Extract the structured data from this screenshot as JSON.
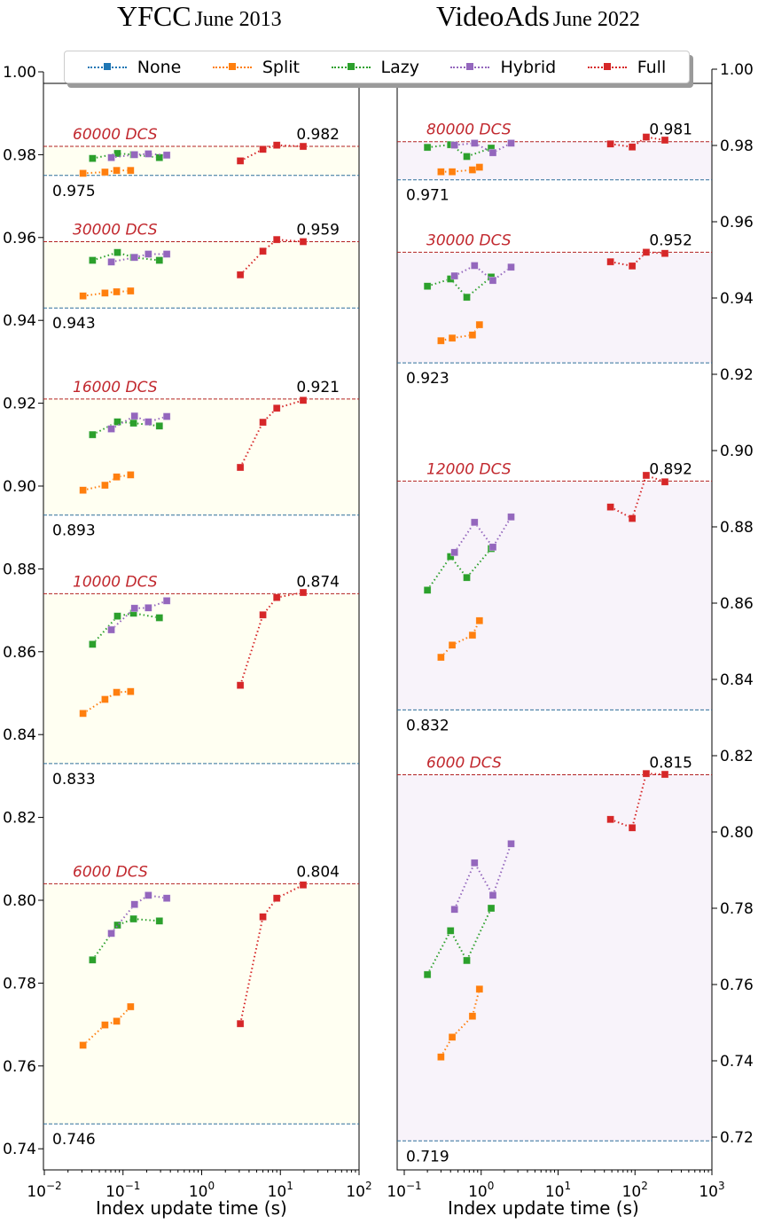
{
  "titles": {
    "left": {
      "main": "YFCC",
      "sub": "June 2013"
    },
    "right": {
      "main": "VideoAds",
      "sub": "June 2022"
    }
  },
  "legend": [
    {
      "label": "None",
      "color": "#1f77b4"
    },
    {
      "label": "Split",
      "color": "#ff7f0e"
    },
    {
      "label": "Lazy",
      "color": "#2ca02c"
    },
    {
      "label": "Hybrid",
      "color": "#9467bd"
    },
    {
      "label": "Full",
      "color": "#d62728"
    }
  ],
  "colors": {
    "none": "#1f77b4",
    "split": "#ff7f0e",
    "lazy": "#2ca02c",
    "hybrid": "#9467bd",
    "full": "#d62728",
    "yfcc_band": "#fffff2",
    "videoads_band": "#f8f3fa"
  },
  "chart_data": [
    {
      "type": "line",
      "title": "YFCC June 2013",
      "xlabel": "Index update time (s)",
      "ylabel": "",
      "xscale": "log",
      "xlim": [
        0.008,
        100
      ],
      "ylim": [
        0.735,
        1.003
      ],
      "xticks": [
        "10^-2",
        "10^-1",
        "10^0",
        "10^1",
        "10^2"
      ],
      "yticks": [
        "0.74",
        "0.76",
        "0.78",
        "0.80",
        "0.82",
        "0.84",
        "0.86",
        "0.88",
        "0.90",
        "0.92",
        "0.94",
        "0.96",
        "0.98",
        "1.00"
      ],
      "yaxis_side": "left",
      "groups": [
        {
          "label": "60000 DCS",
          "none": 0.975,
          "full_max": 0.982,
          "none_label": "0.975",
          "full_label": "0.982",
          "split": [
            [
              0.031,
              0.9755
            ],
            [
              0.059,
              0.9758
            ],
            [
              0.083,
              0.9762
            ],
            [
              0.125,
              0.9762
            ]
          ],
          "lazy": [
            [
              0.041,
              0.9791
            ],
            [
              0.085,
              0.9803
            ],
            [
              0.136,
              0.98
            ],
            [
              0.29,
              0.9793
            ]
          ],
          "hybrid": [
            [
              0.071,
              0.9793
            ],
            [
              0.14,
              0.98
            ],
            [
              0.21,
              0.9802
            ],
            [
              0.36,
              0.9799
            ]
          ],
          "full": [
            [
              3.1,
              0.9785
            ],
            [
              6.0,
              0.9813
            ],
            [
              9.0,
              0.9823
            ],
            [
              19.5,
              0.982
            ]
          ]
        },
        {
          "label": "30000 DCS",
          "none": 0.943,
          "full_max": 0.959,
          "none_label": "0.943",
          "full_label": "0.959",
          "split": [
            [
              0.031,
              0.9459
            ],
            [
              0.059,
              0.9466
            ],
            [
              0.083,
              0.9469
            ],
            [
              0.125,
              0.9471
            ]
          ],
          "lazy": [
            [
              0.041,
              0.9545
            ],
            [
              0.085,
              0.9564
            ],
            [
              0.136,
              0.9552
            ],
            [
              0.29,
              0.9545
            ]
          ],
          "hybrid": [
            [
              0.071,
              0.9541
            ],
            [
              0.14,
              0.9552
            ],
            [
              0.21,
              0.956
            ],
            [
              0.36,
              0.956
            ]
          ],
          "full": [
            [
              3.1,
              0.951
            ],
            [
              6.0,
              0.9567
            ],
            [
              9.0,
              0.9595
            ],
            [
              19.5,
              0.959
            ]
          ]
        },
        {
          "label": "16000 DCS",
          "none": 0.893,
          "full_max": 0.921,
          "none_label": "0.893",
          "full_label": "0.921",
          "split": [
            [
              0.031,
              0.899
            ],
            [
              0.059,
              0.9002
            ],
            [
              0.083,
              0.9022
            ],
            [
              0.125,
              0.9027
            ]
          ],
          "lazy": [
            [
              0.041,
              0.9124
            ],
            [
              0.085,
              0.9155
            ],
            [
              0.136,
              0.9152
            ],
            [
              0.29,
              0.9145
            ]
          ],
          "hybrid": [
            [
              0.071,
              0.9138
            ],
            [
              0.14,
              0.9169
            ],
            [
              0.21,
              0.9155
            ],
            [
              0.36,
              0.9168
            ]
          ],
          "full": [
            [
              3.1,
              0.9045
            ],
            [
              6.0,
              0.9154
            ],
            [
              9.0,
              0.9188
            ],
            [
              19.5,
              0.9207
            ]
          ]
        },
        {
          "label": "10000 DCS",
          "none": 0.833,
          "full_max": 0.874,
          "none_label": "0.833",
          "full_label": "0.874",
          "split": [
            [
              0.031,
              0.8451
            ],
            [
              0.059,
              0.8485
            ],
            [
              0.083,
              0.8502
            ],
            [
              0.125,
              0.8504
            ]
          ],
          "lazy": [
            [
              0.041,
              0.8618
            ],
            [
              0.085,
              0.8686
            ],
            [
              0.136,
              0.8693
            ],
            [
              0.29,
              0.8682
            ]
          ],
          "hybrid": [
            [
              0.071,
              0.8653
            ],
            [
              0.14,
              0.8705
            ],
            [
              0.21,
              0.8706
            ],
            [
              0.36,
              0.8723
            ]
          ],
          "full": [
            [
              3.1,
              0.8519
            ],
            [
              6.0,
              0.8689
            ],
            [
              9.0,
              0.8731
            ],
            [
              19.5,
              0.8743
            ]
          ]
        },
        {
          "label": "6000 DCS",
          "none": 0.746,
          "full_max": 0.804,
          "none_label": "0.746",
          "full_label": "0.804",
          "split": [
            [
              0.031,
              0.765
            ],
            [
              0.059,
              0.7699
            ],
            [
              0.083,
              0.7708
            ],
            [
              0.125,
              0.7743
            ]
          ],
          "lazy": [
            [
              0.041,
              0.7856
            ],
            [
              0.085,
              0.794
            ],
            [
              0.136,
              0.7955
            ],
            [
              0.29,
              0.795
            ]
          ],
          "hybrid": [
            [
              0.071,
              0.792
            ],
            [
              0.14,
              0.799
            ],
            [
              0.21,
              0.8012
            ],
            [
              0.36,
              0.8005
            ]
          ],
          "full": [
            [
              3.1,
              0.7702
            ],
            [
              6.0,
              0.796
            ],
            [
              9.0,
              0.8005
            ],
            [
              19.5,
              0.8037
            ]
          ]
        }
      ]
    },
    {
      "type": "line",
      "title": "VideoAds June 2022",
      "xlabel": "Index update time (s)",
      "ylabel": "",
      "xscale": "log",
      "xlim": [
        0.085,
        1000
      ],
      "ylim": [
        0.712,
        1.003
      ],
      "xticks": [
        "10^-1",
        "10^0",
        "10^1",
        "10^2",
        "10^3"
      ],
      "yticks": [
        "0.72",
        "0.74",
        "0.76",
        "0.78",
        "0.80",
        "0.82",
        "0.84",
        "0.86",
        "0.88",
        "0.90",
        "0.92",
        "0.94",
        "0.96",
        "0.98",
        "1.00"
      ],
      "yaxis_side": "right",
      "groups": [
        {
          "label": "80000 DCS",
          "none": 0.971,
          "full_max": 0.981,
          "none_label": "0.971",
          "full_label": "0.981",
          "split": [
            [
              0.3,
              0.9731
            ],
            [
              0.42,
              0.9731
            ],
            [
              0.77,
              0.9736
            ],
            [
              0.95,
              0.9743
            ]
          ],
          "lazy": [
            [
              0.2,
              0.9795
            ],
            [
              0.4,
              0.9802
            ],
            [
              0.65,
              0.9771
            ],
            [
              1.35,
              0.9793
            ]
          ],
          "hybrid": [
            [
              0.45,
              0.9801
            ],
            [
              0.82,
              0.9806
            ],
            [
              1.42,
              0.9781
            ],
            [
              2.45,
              0.9806
            ]
          ],
          "full": [
            [
              48,
              0.9804
            ],
            [
              92,
              0.9796
            ],
            [
              140,
              0.9822
            ],
            [
              245,
              0.9814
            ]
          ]
        },
        {
          "label": "30000 DCS",
          "none": 0.923,
          "full_max": 0.952,
          "none_label": "0.923",
          "full_label": "0.952",
          "split": [
            [
              0.3,
              0.9288
            ],
            [
              0.42,
              0.9295
            ],
            [
              0.77,
              0.9303
            ],
            [
              0.95,
              0.933
            ]
          ],
          "lazy": [
            [
              0.2,
              0.9431
            ],
            [
              0.4,
              0.945
            ],
            [
              0.65,
              0.9402
            ],
            [
              1.35,
              0.9455
            ]
          ],
          "hybrid": [
            [
              0.45,
              0.9458
            ],
            [
              0.82,
              0.9485
            ],
            [
              1.42,
              0.9446
            ],
            [
              2.45,
              0.9481
            ]
          ],
          "full": [
            [
              48,
              0.9495
            ],
            [
              92,
              0.9484
            ],
            [
              140,
              0.952
            ],
            [
              245,
              0.9517
            ]
          ]
        },
        {
          "label": "12000 DCS",
          "none": 0.832,
          "full_max": 0.892,
          "none_label": "0.832",
          "full_label": "0.892",
          "split": [
            [
              0.3,
              0.8458
            ],
            [
              0.42,
              0.849
            ],
            [
              0.77,
              0.8516
            ],
            [
              0.95,
              0.8554
            ]
          ],
          "lazy": [
            [
              0.2,
              0.8634
            ],
            [
              0.4,
              0.8722
            ],
            [
              0.65,
              0.8667
            ],
            [
              1.35,
              0.8743
            ]
          ],
          "hybrid": [
            [
              0.45,
              0.8733
            ],
            [
              0.82,
              0.8812
            ],
            [
              1.42,
              0.8747
            ],
            [
              2.45,
              0.8826
            ]
          ],
          "full": [
            [
              48,
              0.8852
            ],
            [
              92,
              0.8822
            ],
            [
              140,
              0.8935
            ],
            [
              245,
              0.8918
            ]
          ]
        },
        {
          "label": "6000 DCS",
          "none": 0.719,
          "full_max": 0.815,
          "none_label": "0.719",
          "full_label": "0.815",
          "split": [
            [
              0.3,
              0.741
            ],
            [
              0.42,
              0.7462
            ],
            [
              0.77,
              0.7517
            ],
            [
              0.95,
              0.7588
            ]
          ],
          "lazy": [
            [
              0.2,
              0.7626
            ],
            [
              0.4,
              0.7741
            ],
            [
              0.65,
              0.7663
            ],
            [
              1.35,
              0.78
            ]
          ],
          "hybrid": [
            [
              0.45,
              0.7797
            ],
            [
              0.82,
              0.7919
            ],
            [
              1.42,
              0.7834
            ],
            [
              2.45,
              0.7969
            ]
          ],
          "full": [
            [
              48,
              0.8033
            ],
            [
              92,
              0.8011
            ],
            [
              140,
              0.8153
            ],
            [
              245,
              0.8151
            ]
          ]
        }
      ]
    }
  ],
  "xlabels": {
    "left": "Index update time (s)",
    "right": "Index update time (s)"
  }
}
